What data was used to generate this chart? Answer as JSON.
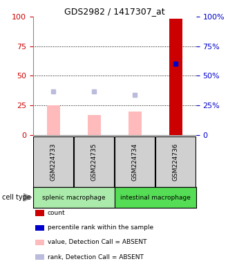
{
  "title": "GDS2982 / 1417307_at",
  "samples": [
    "GSM224733",
    "GSM224735",
    "GSM224734",
    "GSM224736"
  ],
  "bar_values": [
    25,
    17,
    20,
    98
  ],
  "bar_colors": [
    "#ffbbbb",
    "#ffbbbb",
    "#ffbbbb",
    "#cc0000"
  ],
  "rank_values": [
    37,
    37,
    34,
    60
  ],
  "rank_colors": [
    "#bbbbdd",
    "#bbbbdd",
    "#bbbbdd",
    "#0000cc"
  ],
  "cell_types": [
    {
      "label": "splenic macrophage",
      "span": [
        0,
        2
      ],
      "color": "#aaeaaa"
    },
    {
      "label": "intestinal macrophage",
      "span": [
        2,
        4
      ],
      "color": "#55dd55"
    }
  ],
  "ylim": [
    0,
    100
  ],
  "yticks": [
    0,
    25,
    50,
    75,
    100
  ],
  "left_tick_color": "#cc0000",
  "right_tick_color": "#0000cc",
  "background_color": "#ffffff",
  "sample_box_color": "#d0d0d0",
  "legend_items": [
    {
      "color": "#cc0000",
      "label": "count"
    },
    {
      "color": "#0000cc",
      "label": "percentile rank within the sample"
    },
    {
      "color": "#ffbbbb",
      "label": "value, Detection Call = ABSENT"
    },
    {
      "color": "#bbbbdd",
      "label": "rank, Detection Call = ABSENT"
    }
  ]
}
